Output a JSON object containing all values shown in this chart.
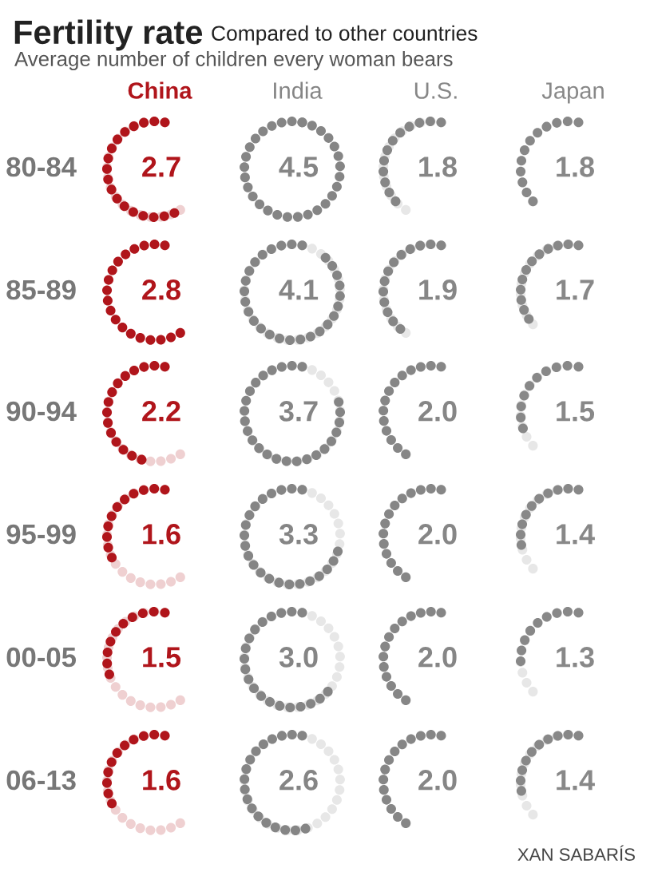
{
  "chart_data": {
    "type": "other",
    "title": "Fertility rate",
    "subtitle": "Compared to other countries",
    "annotations": [
      "Average number of children every woman bears",
      "XAN SABARÍS"
    ],
    "categories": [
      "80-84",
      "85-89",
      "90-94",
      "95-99",
      "00-05",
      "06-13"
    ],
    "series": [
      {
        "name": "China",
        "color": "#b0151b",
        "values": [
          2.7,
          2.8,
          2.2,
          1.6,
          1.5,
          1.6
        ],
        "value_labels": [
          "2.7",
          "2.8",
          "2.2",
          "1.6",
          "1.5",
          "1.6"
        ]
      },
      {
        "name": "India",
        "color": "#858585",
        "values": [
          4.5,
          4.1,
          3.7,
          3.3,
          3.0,
          2.6
        ],
        "value_labels": [
          "4.5",
          "4.1",
          "3.7",
          "3.3",
          "3.0",
          "2.6"
        ]
      },
      {
        "name": "U.S.",
        "color": "#868686",
        "values": [
          1.8,
          1.9,
          2.0,
          2.0,
          2.0,
          2.0
        ],
        "value_labels": [
          "1.8",
          "1.9",
          "2.0",
          "2.0",
          "2.0",
          "2.0"
        ]
      },
      {
        "name": "Japan",
        "color": "#888888",
        "values": [
          1.8,
          1.7,
          1.5,
          1.4,
          1.3,
          1.4
        ],
        "value_labels": [
          "1.8",
          "1.7",
          "1.5",
          "1.4",
          "1.3",
          "1.4"
        ]
      }
    ]
  }
}
